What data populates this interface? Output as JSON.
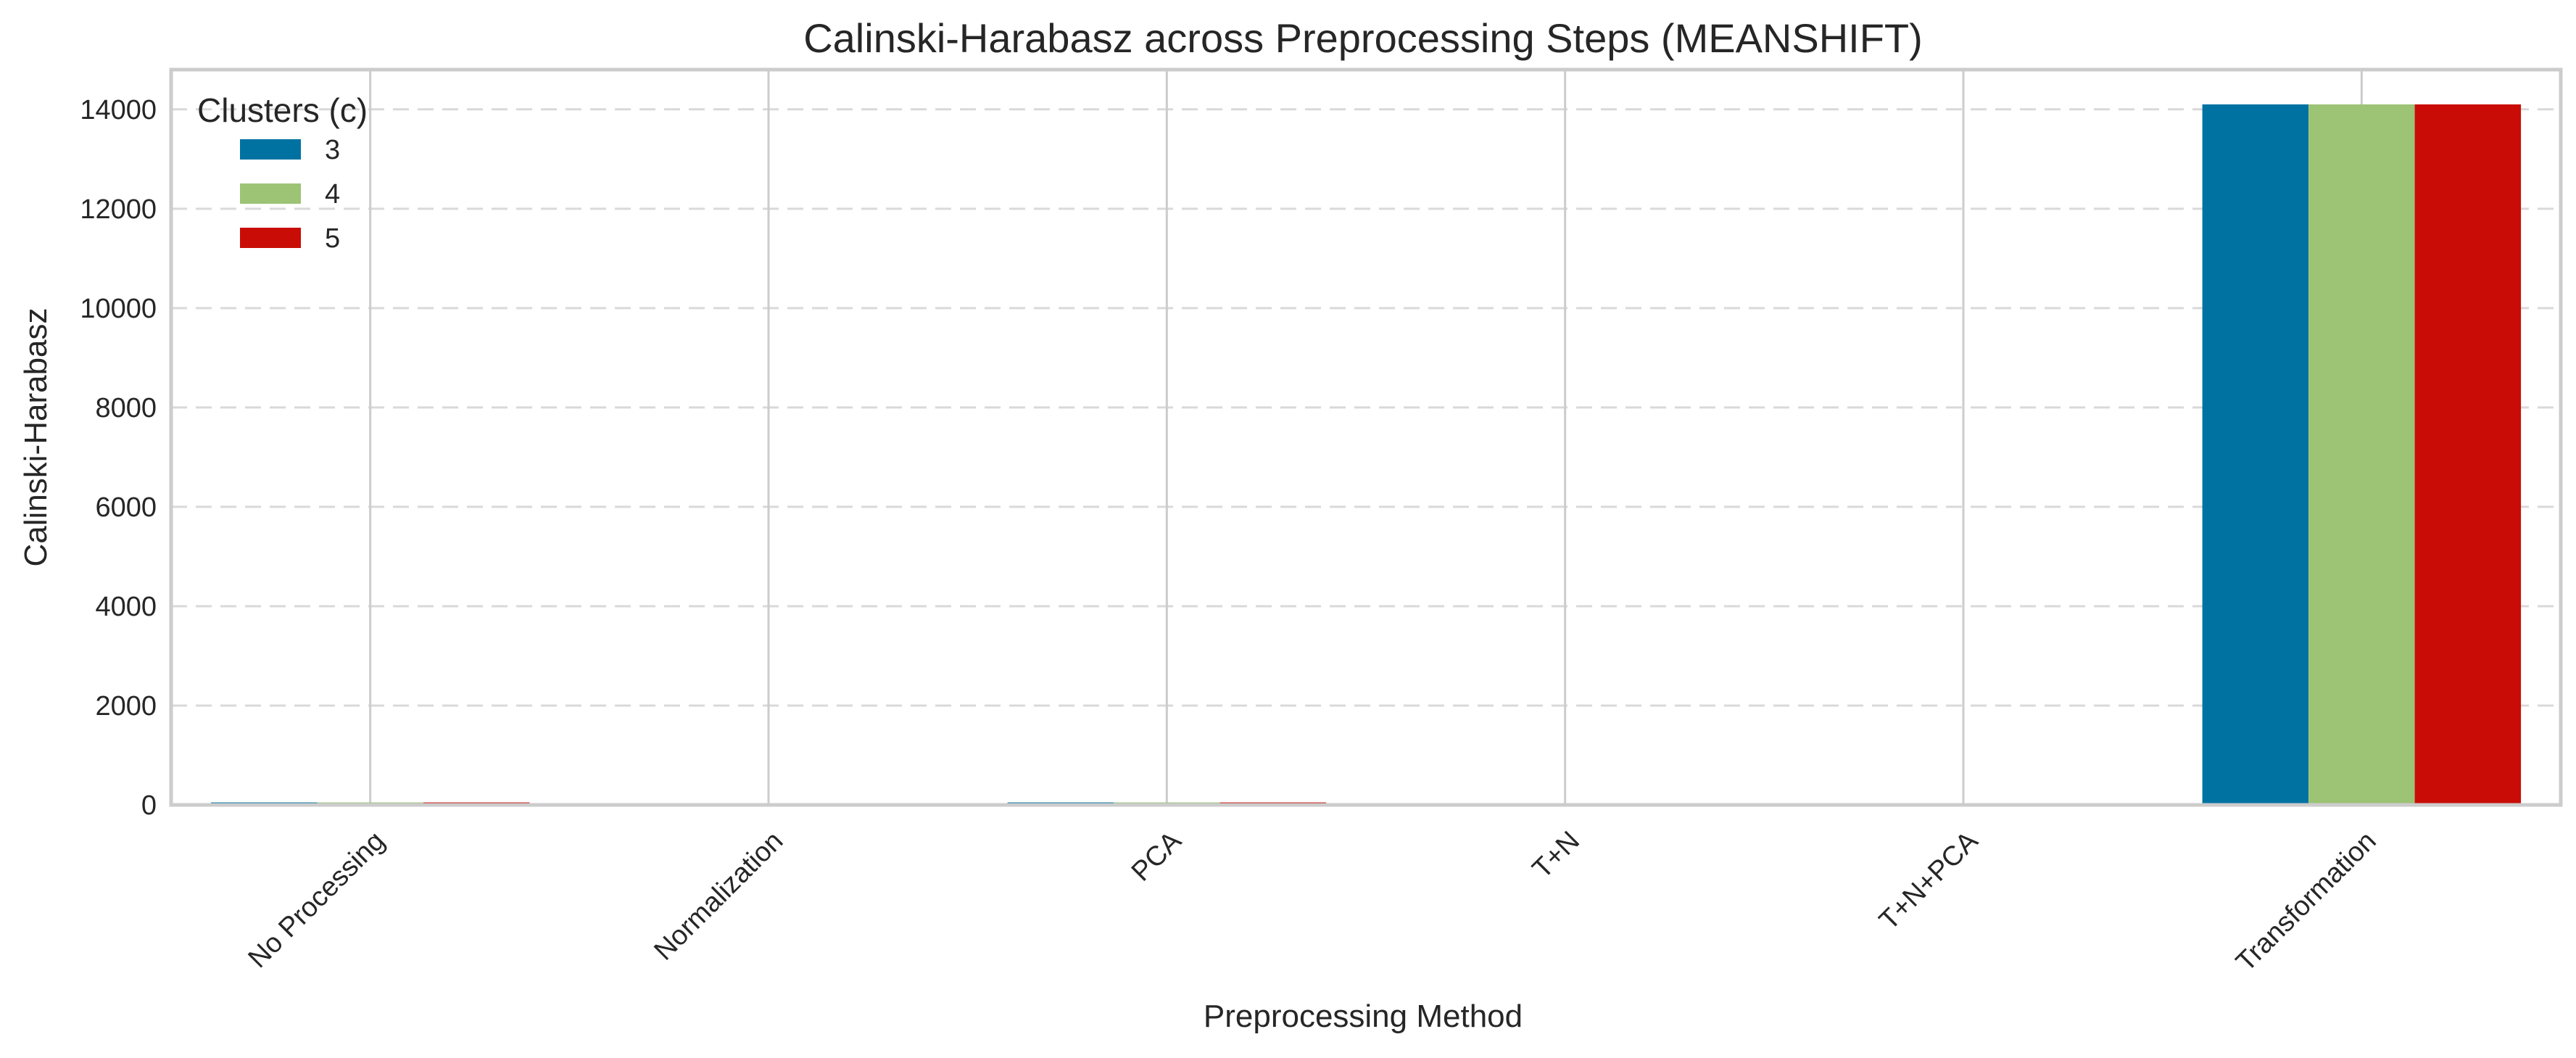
{
  "chart_data": {
    "type": "bar",
    "title": "Calinski-Harabasz across Preprocessing Steps (MEANSHIFT)",
    "xlabel": "Preprocessing Method",
    "ylabel": "Calinski-Harabasz",
    "categories": [
      "No Processing",
      "Normalization",
      "PCA",
      "T+N",
      "T+N+PCA",
      "Transformation"
    ],
    "series": [
      {
        "name": "3",
        "color": "#0072a2",
        "values": [
          50,
          0,
          50,
          0,
          0,
          14100
        ]
      },
      {
        "name": "4",
        "color": "#9dc375",
        "values": [
          50,
          0,
          50,
          0,
          0,
          14100
        ]
      },
      {
        "name": "5",
        "color": "#c90d06",
        "values": [
          50,
          0,
          50,
          0,
          0,
          14100
        ]
      }
    ],
    "ylim": [
      0,
      14800
    ],
    "yticks": [
      0,
      2000,
      4000,
      6000,
      8000,
      10000,
      12000,
      14000
    ],
    "legend": {
      "title": "Clusters (c)",
      "position": "top-left"
    },
    "grid": {
      "y": "dashed",
      "x": "solid"
    }
  }
}
